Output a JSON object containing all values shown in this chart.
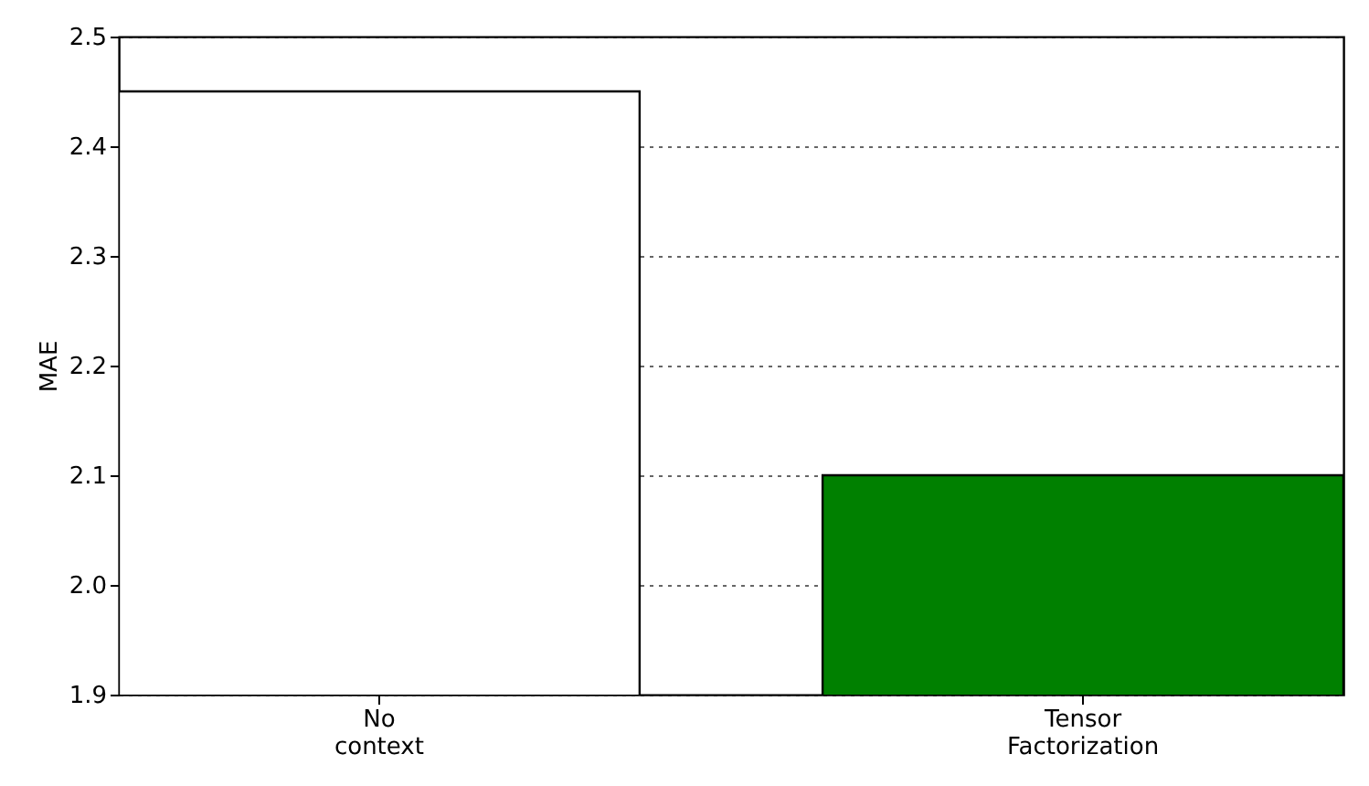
{
  "chart_data": {
    "type": "bar",
    "ylabel": "MAE",
    "categories": [
      "No context",
      "Tensor Factorization"
    ],
    "values": [
      2.45,
      2.1
    ],
    "colors": [
      "#ffffff",
      "#008000"
    ],
    "ylim": [
      1.9,
      2.5
    ],
    "yticks": [
      1.9,
      {
        "value": 2,
        "label": "2.0"
      },
      2.1,
      2.2,
      2.3,
      2.4,
      2.5
    ],
    "grid": "y"
  }
}
